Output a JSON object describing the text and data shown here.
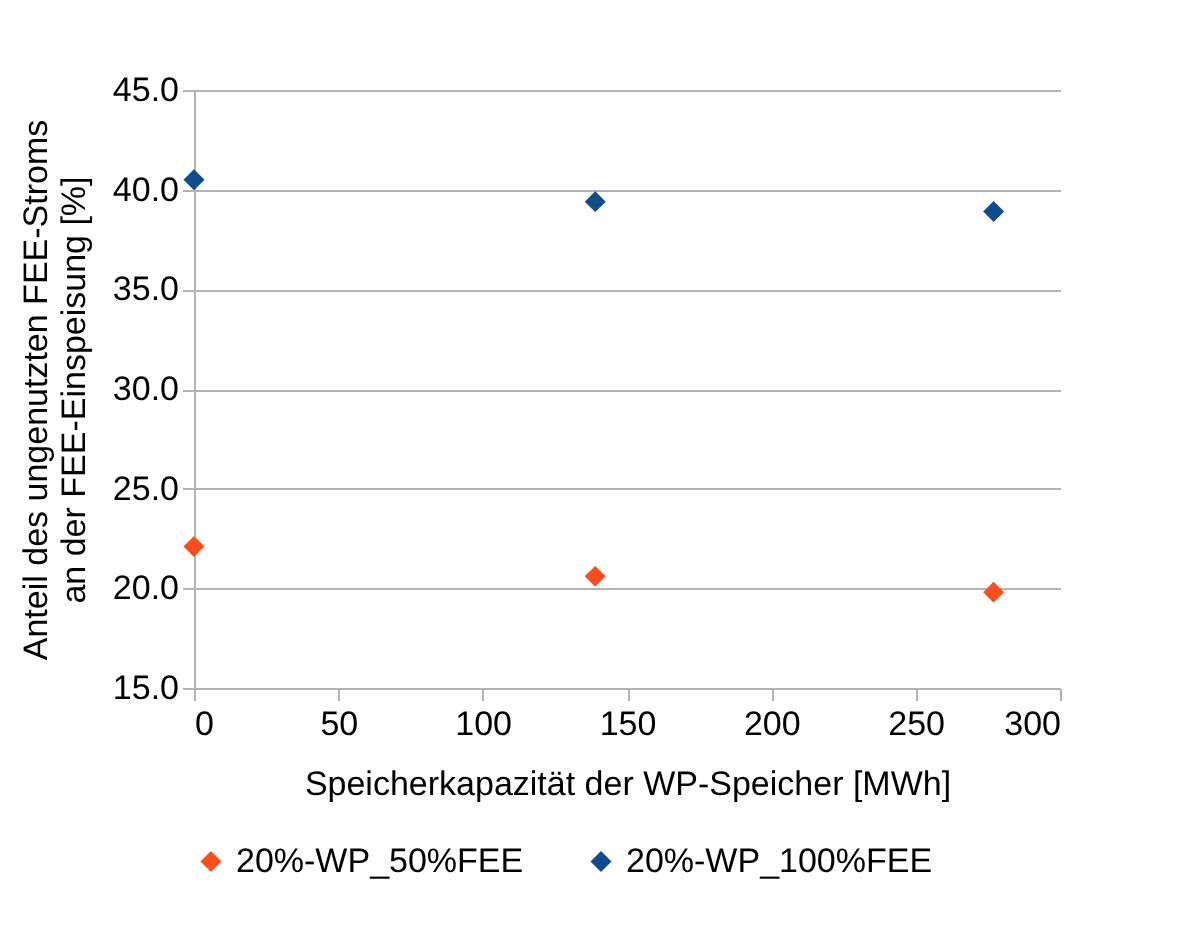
{
  "chart_data": {
    "type": "scatter",
    "xlabel": "Speicherkapazität der WP-Speicher [MWh]",
    "ylabel": "Anteil des ungenutzten FEE-Stroms an der FEE-Einspeisung [%]",
    "x": [
      0,
      139,
      277
    ],
    "series": [
      {
        "name": "20%-WP_50%FEE",
        "color": "#ff4e1b",
        "values": [
          22.1,
          20.6,
          19.8
        ]
      },
      {
        "name": "20%-WP_100%FEE",
        "color": "#0f4c8c",
        "values": [
          40.5,
          39.4,
          38.9
        ]
      }
    ],
    "xlim": [
      0,
      300
    ],
    "xticks": [
      0,
      50,
      100,
      150,
      200,
      250,
      300
    ],
    "ylim": [
      15,
      45
    ],
    "yticks": [
      {
        "value": 15,
        "label": "15.0"
      },
      {
        "value": 20,
        "label": "20.0"
      },
      {
        "value": 25,
        "label": "25.0"
      },
      {
        "value": 30,
        "label": "30.0"
      },
      {
        "value": 35,
        "label": "35.0"
      },
      {
        "value": 40,
        "label": "40.0"
      },
      {
        "value": 45,
        "label": "45.0"
      }
    ],
    "grid": "y",
    "legend": "bottom",
    "marker": "diamond"
  }
}
